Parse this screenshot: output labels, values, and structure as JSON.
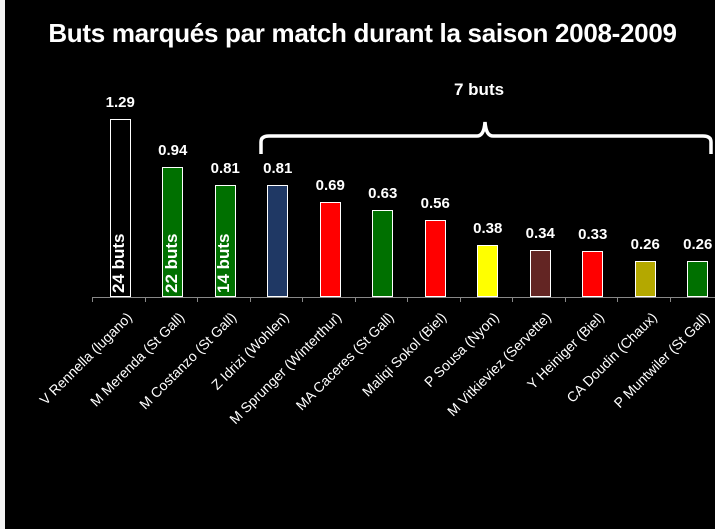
{
  "title": "Buts marqués par match durant la saison 2008-2009",
  "annotation": {
    "brace_label": "7 buts"
  },
  "chart_data": {
    "type": "bar",
    "title": "Buts marqués par match durant la saison 2008-2009",
    "xlabel": "",
    "ylabel": "",
    "ylim": [
      0,
      1.4
    ],
    "grid": false,
    "legend": "none",
    "categories": [
      "V Rennella (lugano)",
      "M Merenda (St Gall)",
      "M Costanzo (St Gall)",
      "Z Idrizi (Wohlen)",
      "M Sprunger (Winterthur)",
      "MA Caceres  (St Gall)",
      "Maliqi Sokol (Biel)",
      "P Sousa (Nyon)",
      "M Vitkieviez  (Servette)",
      "Y Heiniger (Biel)",
      "CA Doudin (Chaux)",
      "P Muntwiler (St Gall)"
    ],
    "values": [
      1.29,
      0.94,
      0.81,
      0.81,
      0.69,
      0.63,
      0.56,
      0.38,
      0.34,
      0.33,
      0.26,
      0.26
    ],
    "value_labels": [
      "1.29",
      "0.94",
      "0.81",
      "0.81",
      "0.69",
      "0.63",
      "0.56",
      "0.38",
      "0.34",
      "0.33",
      "0.26",
      "0.26"
    ],
    "colors": [
      "#000000",
      "#007000",
      "#007000",
      "#1f3864",
      "#ff0000",
      "#007000",
      "#ff0000",
      "#ffff00",
      "#632523",
      "#ff0000",
      "#b4a800",
      "#007000"
    ],
    "in_bar_labels": [
      "24 buts",
      "22 buts",
      "14 buts"
    ],
    "annotations": [
      {
        "text": "7 buts",
        "type": "brace",
        "spans_categories": [
          3,
          11
        ]
      }
    ]
  }
}
